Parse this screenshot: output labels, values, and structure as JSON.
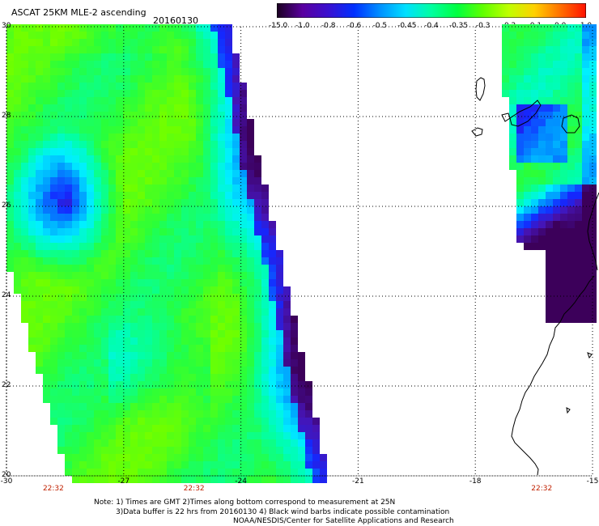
{
  "header": {
    "title": "ASCAT 25KM MLE-2 ascending",
    "date": "20160130"
  },
  "colorbar": {
    "tick_labels": [
      "-15.0",
      "-1.0",
      "-0.8",
      "-0.6",
      "-0.5",
      "-0.45",
      "-0.4",
      "-0.35",
      "-0.3",
      "-0.2",
      "-0.1",
      "0.0",
      "1.0"
    ],
    "colors": [
      "#1a0020",
      "#5a00a0",
      "#3a10d0",
      "#0030ff",
      "#0090ff",
      "#00e0ff",
      "#00ffa0",
      "#00ff40",
      "#60ff00",
      "#c0ff00",
      "#ffd000",
      "#ff7000",
      "#ff1000"
    ]
  },
  "chart_data": {
    "type": "heatmap",
    "title": "ASCAT 25KM MLE-2 ascending",
    "date": "20160130",
    "x_ticks": [
      "-30",
      "-27",
      "-24",
      "-21",
      "-18",
      "-15"
    ],
    "y_ticks": [
      "30",
      "28",
      "26",
      "24",
      "22",
      "20"
    ],
    "xlim": [
      -30,
      -15
    ],
    "ylim": [
      20,
      30
    ],
    "grid": true,
    "colorbar_ticks": [
      "-15.0",
      "-1.0",
      "-0.8",
      "-0.6",
      "-0.5",
      "-0.45",
      "-0.4",
      "-0.35",
      "-0.3",
      "-0.2",
      "-0.1",
      "0.0",
      "1.0"
    ],
    "swath_times": [
      {
        "label": "22:32",
        "lon": -28.8
      },
      {
        "label": "22:32",
        "lon": -25.2
      },
      {
        "label": "22:32",
        "lon": -16.3
      }
    ]
  },
  "notes": {
    "line1": "Note: 1) Times are GMT 2)Times along bottom correspond to measurement at 25N",
    "line2": "3)Data buffer is 22 hrs from 20160130 4) Black wind barbs indicate possible contamination",
    "line3": "NOAA/NESDIS/Center for Satellite Applications and Research"
  }
}
